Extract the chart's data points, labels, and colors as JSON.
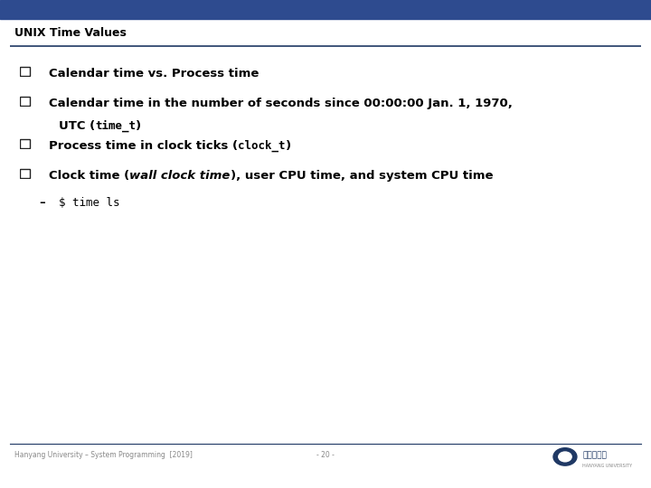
{
  "title": "UNIX Time Values",
  "title_color": "#000000",
  "title_fontsize": 9,
  "background_color": "#ffffff",
  "line_color": "#1F3864",
  "header_bar_color": "#2E4B8F",
  "bullet_items": [
    {
      "level": 0,
      "lines": [
        [
          {
            "text": "Calendar time vs. Process time",
            "bold": true,
            "italic": false,
            "mono": false
          }
        ]
      ]
    },
    {
      "level": 0,
      "lines": [
        [
          {
            "text": "Calendar time in the number of seconds since 00:00:00 Jan. 1, 1970,",
            "bold": true,
            "italic": false,
            "mono": false
          }
        ],
        [
          {
            "text": "UTC (",
            "bold": true,
            "italic": false,
            "mono": false
          },
          {
            "text": "time_t",
            "bold": true,
            "italic": false,
            "mono": true
          },
          {
            "text": ")",
            "bold": true,
            "italic": false,
            "mono": false
          }
        ]
      ]
    },
    {
      "level": 0,
      "lines": [
        [
          {
            "text": "Process time in clock ticks (",
            "bold": true,
            "italic": false,
            "mono": false
          },
          {
            "text": "clock_t",
            "bold": true,
            "italic": false,
            "mono": true
          },
          {
            "text": ")",
            "bold": true,
            "italic": false,
            "mono": false
          }
        ]
      ]
    },
    {
      "level": 0,
      "lines": [
        [
          {
            "text": "Clock time (",
            "bold": true,
            "italic": false,
            "mono": false
          },
          {
            "text": "wall clock time",
            "bold": true,
            "italic": true,
            "mono": false
          },
          {
            "text": "), user CPU time, and system CPU time",
            "bold": true,
            "italic": false,
            "mono": false
          }
        ]
      ]
    },
    {
      "level": 1,
      "lines": [
        [
          {
            "text": "$ time ls",
            "bold": false,
            "italic": false,
            "mono": true
          }
        ]
      ]
    }
  ],
  "footer_left": "Hanyang University – System Programming  [2019]",
  "footer_center": "- 20 -",
  "footer_fontsize": 5.5,
  "logo_text": "한양대학교",
  "logo_sub": "HANYANG UNIVERSITY"
}
